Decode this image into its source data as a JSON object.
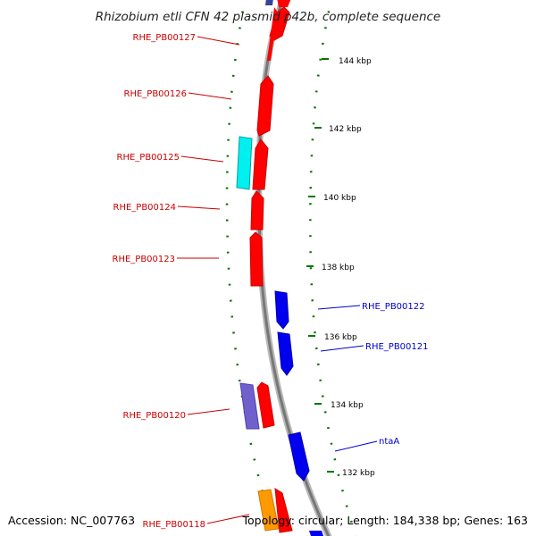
{
  "title": "Rhizobium etli CFN 42 plasmid p42b, complete sequence",
  "footer": {
    "accession": "Accession: NC_007763",
    "topology": "Topology: circular; Length: 184,338 bp; Genes: 163"
  },
  "colors": {
    "forward_strand": "#ff0000",
    "reverse_strand": "#0000ee",
    "cyan_feature": "#00f0f0",
    "purple_feature": "#7060cc",
    "orange_feature": "#ff9900",
    "backbone": "#888888",
    "tick_marks": "#007700",
    "forward_label": "#cc0000",
    "reverse_label": "#0000cc"
  },
  "kbp_labels": [
    "144 kbp",
    "142 kbp",
    "140 kbp",
    "138 kbp",
    "136 kbp",
    "134 kbp",
    "132 kbp"
  ],
  "genes": [
    {
      "label": "RHE_PB00127",
      "strand": "forward"
    },
    {
      "label": "RHE_PB00126",
      "strand": "forward"
    },
    {
      "label": "RHE_PB00125",
      "strand": "forward"
    },
    {
      "label": "RHE_PB00124",
      "strand": "forward"
    },
    {
      "label": "RHE_PB00123",
      "strand": "forward"
    },
    {
      "label": "RHE_PB00122",
      "strand": "reverse"
    },
    {
      "label": "RHE_PB00121",
      "strand": "reverse"
    },
    {
      "label": "RHE_PB00120",
      "strand": "forward"
    },
    {
      "label": "ntaA",
      "strand": "reverse"
    },
    {
      "label": "RHE_PB00118",
      "strand": "forward"
    }
  ]
}
